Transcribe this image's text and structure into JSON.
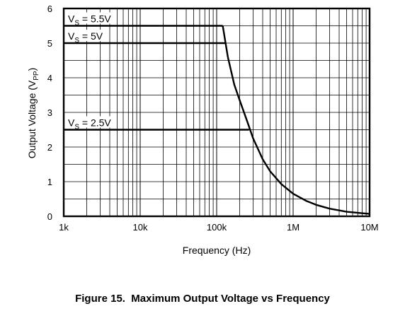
{
  "chart_data": {
    "type": "line",
    "title": "Figure 15.  Maximum Output Voltage vs Frequency",
    "xlabel": "Frequency (Hz)",
    "ylabel": {
      "main": "Output Voltage (V",
      "sub": "PP",
      "close": ")"
    },
    "x_scale": "log",
    "xlim": [
      1000,
      10000000
    ],
    "ylim": [
      0,
      6
    ],
    "grid": true,
    "x_ticks": [
      {
        "value": 1000,
        "label": "1k"
      },
      {
        "value": 10000,
        "label": "10k"
      },
      {
        "value": 100000,
        "label": "100k"
      },
      {
        "value": 1000000,
        "label": "1M"
      },
      {
        "value": 10000000,
        "label": "10M"
      }
    ],
    "y_ticks": [
      {
        "value": 0,
        "label": "0"
      },
      {
        "value": 1,
        "label": "1"
      },
      {
        "value": 2,
        "label": "2"
      },
      {
        "value": 3,
        "label": "3"
      },
      {
        "value": 4,
        "label": "4"
      },
      {
        "value": 5,
        "label": "5"
      },
      {
        "value": 6,
        "label": "6"
      }
    ],
    "envelope": [
      [
        120000,
        5.5
      ],
      [
        140000,
        4.6
      ],
      [
        170000,
        3.8
      ],
      [
        200000,
        3.35
      ],
      [
        250000,
        2.75
      ],
      [
        300000,
        2.25
      ],
      [
        400000,
        1.65
      ],
      [
        500000,
        1.3
      ],
      [
        700000,
        0.93
      ],
      [
        1000000,
        0.65
      ],
      [
        1500000,
        0.44
      ],
      [
        2000000,
        0.33
      ],
      [
        3000000,
        0.22
      ],
      [
        5000000,
        0.13
      ],
      [
        10000000,
        0.07
      ]
    ],
    "series": [
      {
        "label": {
          "main": "V",
          "sub": "S",
          "rest": " = 5.5V"
        },
        "value": 5.5,
        "x_start": 1000,
        "x_end": 120000
      },
      {
        "label": {
          "main": "V",
          "sub": "S",
          "rest": " = 5V"
        },
        "value": 5.0,
        "x_start": 1000,
        "x_end": 130000
      },
      {
        "label": {
          "main": "V",
          "sub": "S",
          "rest": " = 2.5V"
        },
        "value": 2.5,
        "x_start": 1000,
        "x_end": 265000
      }
    ]
  }
}
